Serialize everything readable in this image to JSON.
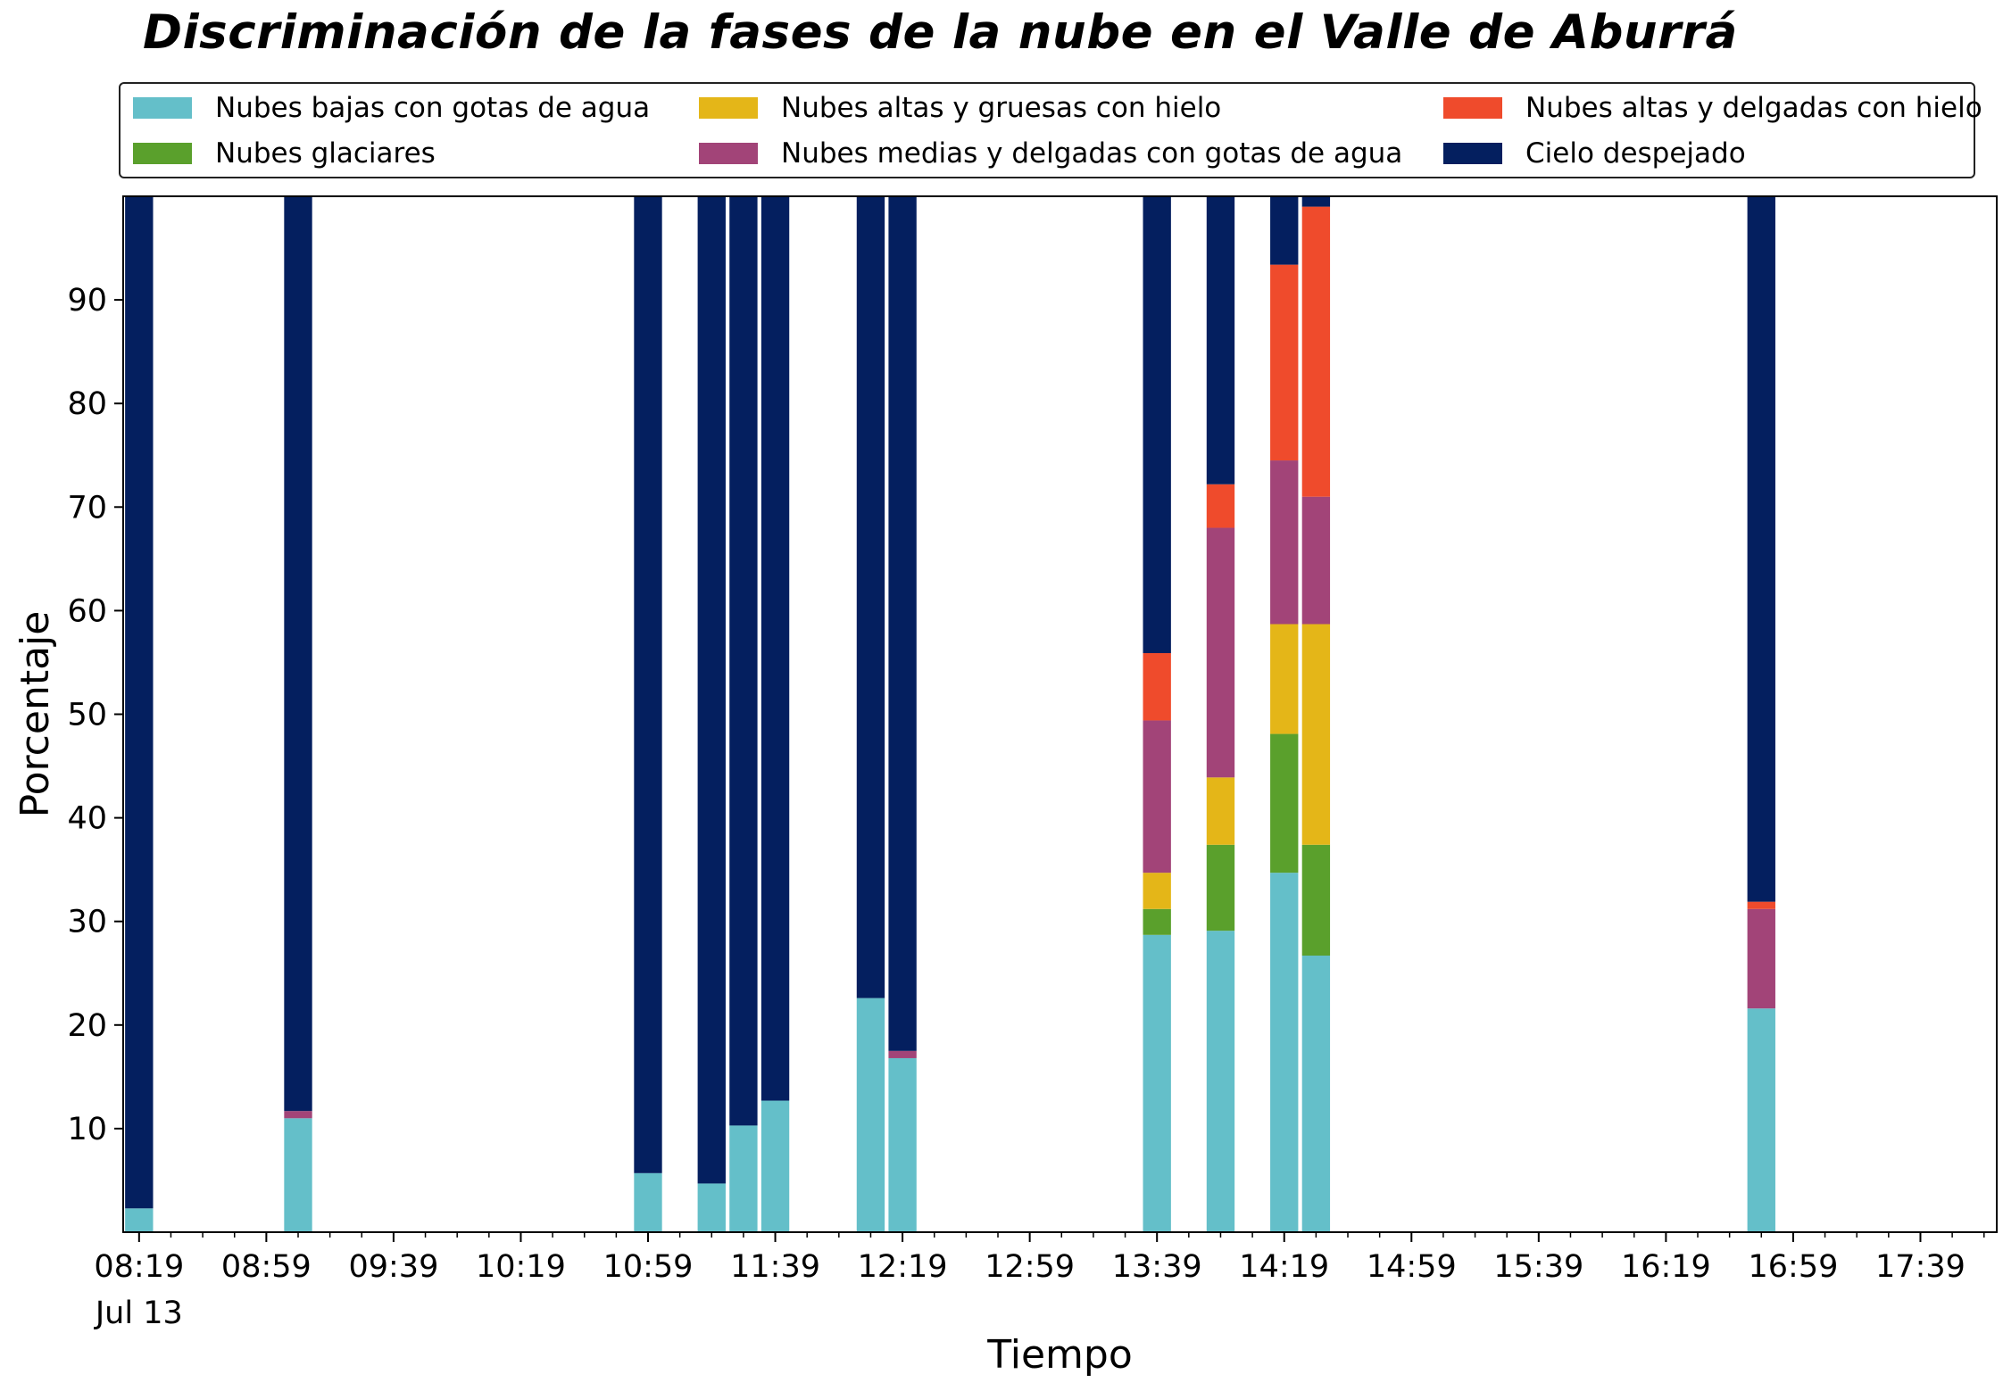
{
  "chart_data": {
    "type": "bar",
    "stacked": true,
    "title": "Discriminación de la fases de la nube en el Valle de Aburrá",
    "xlabel": "Tiempo",
    "ylabel": "Porcentaje",
    "ylim": [
      0,
      100
    ],
    "yticks": [
      10,
      20,
      30,
      40,
      50,
      60,
      70,
      80,
      90
    ],
    "xlim_minutes": [
      494,
      1083
    ],
    "bar_width_minutes": 8.8,
    "x_major_ticks": [
      {
        "label": "08:19",
        "minute": 499
      },
      {
        "label": "08:59",
        "minute": 539
      },
      {
        "label": "09:39",
        "minute": 579
      },
      {
        "label": "10:19",
        "minute": 619
      },
      {
        "label": "10:59",
        "minute": 659
      },
      {
        "label": "11:39",
        "minute": 699
      },
      {
        "label": "12:19",
        "minute": 739
      },
      {
        "label": "12:59",
        "minute": 779
      },
      {
        "label": "13:39",
        "minute": 819
      },
      {
        "label": "14:19",
        "minute": 859
      },
      {
        "label": "14:59",
        "minute": 899
      },
      {
        "label": "15:39",
        "minute": 939
      },
      {
        "label": "16:19",
        "minute": 979
      },
      {
        "label": "16:59",
        "minute": 1019
      },
      {
        "label": "17:39",
        "minute": 1059
      }
    ],
    "x_date_label": "Jul 13",
    "x_minor_step_minutes": 10,
    "legend_position": "top",
    "series": [
      {
        "name": "Nubes bajas con gotas de agua",
        "color": "#64bfc9"
      },
      {
        "name": "Nubes glaciares",
        "color": "#5aa02c"
      },
      {
        "name": "Nubes altas y gruesas con hielo",
        "color": "#e4b618"
      },
      {
        "name": "Nubes medias y delgadas con gotas de agua",
        "color": "#a24478"
      },
      {
        "name": "Nubes altas y delgadas con hielo",
        "color": "#ef4b2c"
      },
      {
        "name": "Cielo despejado",
        "color": "#041f5f"
      }
    ],
    "bars": [
      {
        "x": "08:19",
        "minute": 499,
        "values": [
          2.3,
          0,
          0,
          0,
          0,
          97.7
        ]
      },
      {
        "x": "09:09",
        "minute": 549,
        "values": [
          11.0,
          0,
          0,
          0.7,
          0,
          88.3
        ]
      },
      {
        "x": "10:59",
        "minute": 659,
        "values": [
          5.7,
          0,
          0,
          0,
          0,
          94.3
        ]
      },
      {
        "x": "11:19",
        "minute": 679,
        "values": [
          4.7,
          0,
          0,
          0,
          0,
          95.3
        ]
      },
      {
        "x": "11:29",
        "minute": 689,
        "values": [
          10.3,
          0,
          0,
          0,
          0,
          89.7
        ]
      },
      {
        "x": "11:39",
        "minute": 699,
        "values": [
          12.7,
          0,
          0,
          0,
          0,
          87.3
        ]
      },
      {
        "x": "12:09",
        "minute": 729,
        "values": [
          22.6,
          0,
          0,
          0,
          0,
          77.4
        ]
      },
      {
        "x": "12:19",
        "minute": 739,
        "values": [
          16.8,
          0,
          0,
          0.7,
          0,
          82.5
        ]
      },
      {
        "x": "13:39",
        "minute": 819,
        "values": [
          28.7,
          2.5,
          3.5,
          14.7,
          6.5,
          44.1
        ]
      },
      {
        "x": "13:59",
        "minute": 839,
        "values": [
          29.1,
          8.3,
          6.5,
          24.1,
          4.2,
          27.8
        ]
      },
      {
        "x": "14:19",
        "minute": 859,
        "values": [
          34.7,
          13.4,
          10.6,
          15.8,
          18.9,
          6.6
        ]
      },
      {
        "x": "14:29",
        "minute": 869,
        "values": [
          26.7,
          10.7,
          21.3,
          12.3,
          28.0,
          1.0
        ]
      },
      {
        "x": "16:49",
        "minute": 1009,
        "values": [
          21.6,
          0,
          0,
          9.6,
          0.7,
          68.1
        ]
      }
    ]
  }
}
